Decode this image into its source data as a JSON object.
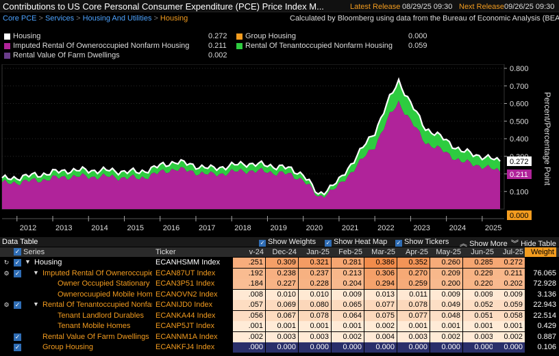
{
  "header": {
    "title": "Contributions to US Core Personal Consumer Expenditure (PCE) Price Index M...",
    "latest_label": "Latest Release",
    "latest_value": "08/29/25 09:30",
    "next_label": "Next Release",
    "next_value": "09/26/25 09:30"
  },
  "breadcrumb": {
    "items": [
      "Core PCE",
      "Services",
      "Housing And Utilities",
      "Housing"
    ],
    "separator": ">"
  },
  "source_note": "Calculated by Bloomberg using data from the Bureau of Economic Analysis (BEA)",
  "legend": [
    {
      "label": "Housing",
      "value": "0.272",
      "color": "#ffffff"
    },
    {
      "label": "Imputed Rental Of Owneroccupied Nonfarm Housing",
      "value": "0.211",
      "color": "#b0239a"
    },
    {
      "label": "Rental Value Of Farm Dwellings",
      "value": "0.002",
      "color": "#6a3d8a"
    },
    {
      "label": "Group Housing",
      "value": "0.000",
      "color": "#f39c1f"
    },
    {
      "label": "Rental Of Tenantoccupied Nonfarm Housing",
      "value": "0.059",
      "color": "#2ecc40"
    }
  ],
  "chart_data": {
    "type": "area",
    "ylabel": "Percent/Percentage Point",
    "ylim": [
      0,
      0.8
    ],
    "y_ticks": [
      "0.100",
      "0.200",
      "0.300",
      "0.400",
      "0.500",
      "0.600",
      "0.700",
      "0.800"
    ],
    "x_ticks": [
      "2012",
      "2013",
      "2014",
      "2015",
      "2016",
      "2017",
      "2018",
      "2019",
      "2020",
      "2021",
      "2022",
      "2023",
      "2024",
      "2025"
    ],
    "grid": true,
    "x_start": "2011-08",
    "x_end": "2025-07",
    "series": [
      {
        "name": "Imputed Rental Of Owneroccupied Nonfarm Housing",
        "color": "#b0239a"
      },
      {
        "name": "Rental Of Tenantoccupied Nonfarm Housing",
        "color": "#2ecc40"
      },
      {
        "name": "Housing",
        "color": "#ffffff"
      }
    ],
    "anchors": {
      "x": [
        "2011-08",
        "2012-06",
        "2013-06",
        "2014-06",
        "2015-06",
        "2016-06",
        "2017-06",
        "2018-06",
        "2019-06",
        "2020-01",
        "2020-06",
        "2021-01",
        "2021-06",
        "2022-01",
        "2022-06",
        "2022-09",
        "2023-01",
        "2023-06",
        "2024-01",
        "2024-06",
        "2025-01",
        "2025-07"
      ],
      "housing": [
        0.17,
        0.19,
        0.22,
        0.22,
        0.21,
        0.27,
        0.23,
        0.26,
        0.24,
        0.2,
        0.08,
        0.16,
        0.28,
        0.44,
        0.63,
        0.73,
        0.6,
        0.46,
        0.39,
        0.33,
        0.3,
        0.272
      ],
      "tenant": [
        0.025,
        0.03,
        0.035,
        0.035,
        0.035,
        0.04,
        0.035,
        0.04,
        0.035,
        0.03,
        0.015,
        0.03,
        0.05,
        0.08,
        0.1,
        0.12,
        0.1,
        0.08,
        0.07,
        0.06,
        0.055,
        0.059
      ]
    },
    "value_labels": {
      "housing": "0.272",
      "imputed": "0.211",
      "group": "0.000"
    }
  },
  "table": {
    "title": "Data Table",
    "toolbar": {
      "show_weights": "Show Weights",
      "show_heat_map": "Show Heat Map",
      "show_tickers": "Show Tickers",
      "show_more": "Show More",
      "hide_table": "Hide Table"
    },
    "columns": {
      "series": "Series",
      "ticker": "Ticker",
      "months": [
        "v-24",
        "Dec-24",
        "Jan-25",
        "Feb-25",
        "Mar-25",
        "Apr-25",
        "May-25",
        "Jun-25",
        "Jul-25"
      ],
      "weight": "Weight"
    },
    "rows": [
      {
        "name": "Housing",
        "ticker": "ECANHSMM Index",
        "values": [
          ".251",
          "0.309",
          "0.321",
          "0.281",
          "0.386",
          "0.352",
          "0.260",
          "0.285",
          "0.272"
        ],
        "weight": "",
        "level": 0
      },
      {
        "name": "Imputed Rental Of Owneroccupied Nonfarm Housing",
        "ticker": "ECAN87UT Index",
        "values": [
          ".192",
          "0.238",
          "0.237",
          "0.213",
          "0.306",
          "0.270",
          "0.209",
          "0.229",
          "0.211"
        ],
        "weight": "76.065",
        "level": 1
      },
      {
        "name": "Owner Occupied Stationary Homes",
        "ticker": "ECAN3P51 Index",
        "values": [
          ".184",
          "0.227",
          "0.228",
          "0.204",
          "0.294",
          "0.259",
          "0.200",
          "0.220",
          "0.202"
        ],
        "weight": "72.928",
        "level": 2
      },
      {
        "name": "Ownerocuupied Mobile Homes",
        "ticker": "ECANOVN2 Index",
        "values": [
          ".008",
          "0.010",
          "0.010",
          "0.009",
          "0.013",
          "0.011",
          "0.009",
          "0.009",
          "0.009"
        ],
        "weight": "3.136",
        "level": 2
      },
      {
        "name": "Rental Of Tenantoccupied Nonfarm Housing",
        "ticker": "ECANIJD0 Index",
        "values": [
          ".057",
          "0.069",
          "0.080",
          "0.065",
          "0.077",
          "0.078",
          "0.049",
          "0.052",
          "0.059"
        ],
        "weight": "22.943",
        "level": 1
      },
      {
        "name": "Tenant Landlord Durables",
        "ticker": "ECANKA44 Index",
        "values": [
          ".056",
          "0.067",
          "0.078",
          "0.064",
          "0.075",
          "0.077",
          "0.048",
          "0.051",
          "0.058"
        ],
        "weight": "22.514",
        "level": 2
      },
      {
        "name": "Tenant Mobile Homes",
        "ticker": "ECANP5JT Index",
        "values": [
          ".001",
          "0.001",
          "0.001",
          "0.001",
          "0.002",
          "0.001",
          "0.001",
          "0.001",
          "0.001"
        ],
        "weight": "0.429",
        "level": 2
      },
      {
        "name": "Rental Value Of Farm Dwellings",
        "ticker": "ECANNM1A Index",
        "values": [
          ".002",
          "0.003",
          "0.003",
          "0.002",
          "0.004",
          "0.003",
          "0.002",
          "0.003",
          "0.002"
        ],
        "weight": "0.887",
        "level": 1
      },
      {
        "name": "Group Housing",
        "ticker": "ECANKFJ4 Index",
        "values": [
          ".000",
          "0.000",
          "0.000",
          "0.000",
          "0.000",
          "0.000",
          "0.000",
          "0.000",
          "0.000"
        ],
        "weight": "0.106",
        "level": 1
      }
    ]
  }
}
